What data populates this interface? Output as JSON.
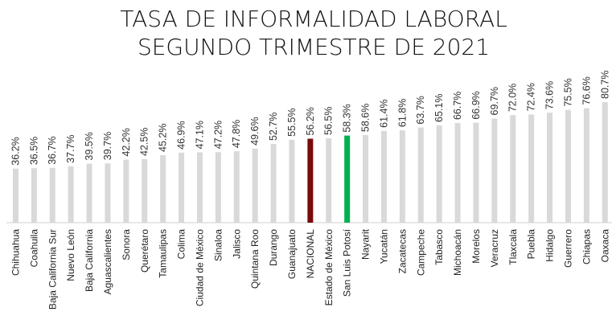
{
  "chart_data": {
    "type": "bar",
    "title": "TASA DE INFORMALIDAD LABORAL",
    "subtitle": "SEGUNDO TRIMESTRE DE 2021",
    "categories": [
      "Chihuahua",
      "Coahuila",
      "Baja California Sur",
      "Nuevo León",
      "Baja California",
      "Aguascalientes",
      "Sonora",
      "Querétaro",
      "Tamaulipas",
      "Colima",
      "Ciudad de México",
      "Sinaloa",
      "Jalisco",
      "Quintana Roo",
      "Durango",
      "Guanajuato",
      "NACIONAL",
      "Estado de México",
      "San Luis Potosí",
      "Nayarit",
      "Yucatán",
      "Zacatecas",
      "Campeche",
      "Tabasco",
      "Michoacán",
      "Morelos",
      "Veracruz",
      "Tlaxcala",
      "Puebla",
      "Hidalgo",
      "Guerrero",
      "Chiapas",
      "Oaxaca"
    ],
    "values": [
      36.2,
      36.5,
      36.7,
      37.7,
      39.5,
      39.7,
      42.2,
      42.5,
      45.2,
      46.9,
      47.1,
      47.2,
      47.8,
      49.6,
      52.7,
      55.5,
      56.2,
      56.5,
      58.3,
      58.6,
      61.4,
      61.8,
      63.7,
      65.1,
      66.7,
      66.9,
      69.7,
      72.0,
      72.4,
      73.6,
      75.5,
      76.6,
      80.7
    ],
    "value_labels": [
      "36.2%",
      "36.5%",
      "36.7%",
      "37.7%",
      "39.5%",
      "39.7%",
      "42.2%",
      "42.5%",
      "45.2%",
      "46.9%",
      "47.1%",
      "47.2%",
      "47.8%",
      "49.6%",
      "52.7%",
      "55.5%",
      "56.2%",
      "56.5%",
      "58.3%",
      "58.6%",
      "61.4%",
      "61.8%",
      "63.7%",
      "65.1%",
      "66.7%",
      "66.9%",
      "69.7%",
      "72.0%",
      "72.4%",
      "73.6%",
      "75.5%",
      "76.6%",
      "80.7%"
    ],
    "colors": [
      "#d9d9d9",
      "#d9d9d9",
      "#d9d9d9",
      "#d9d9d9",
      "#d9d9d9",
      "#d9d9d9",
      "#d9d9d9",
      "#d9d9d9",
      "#d9d9d9",
      "#d9d9d9",
      "#d9d9d9",
      "#d9d9d9",
      "#d9d9d9",
      "#d9d9d9",
      "#d9d9d9",
      "#d9d9d9",
      "#7b0a0a",
      "#d9d9d9",
      "#00b050",
      "#d9d9d9",
      "#d9d9d9",
      "#d9d9d9",
      "#d9d9d9",
      "#d9d9d9",
      "#d9d9d9",
      "#d9d9d9",
      "#d9d9d9",
      "#d9d9d9",
      "#d9d9d9",
      "#d9d9d9",
      "#d9d9d9",
      "#d9d9d9",
      "#d9d9d9"
    ]
  }
}
